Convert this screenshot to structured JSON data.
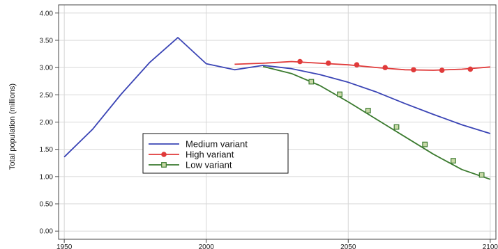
{
  "chart_data": {
    "type": "line",
    "ylabel": "Total population (millions)",
    "xlim": [
      1948,
      2102
    ],
    "ylim": [
      -0.15,
      4.15
    ],
    "x_ticks": [
      1950,
      2000,
      2050,
      2100
    ],
    "x_tick_labels": [
      "1950",
      "2000",
      "2050",
      "2100"
    ],
    "y_ticks": [
      0,
      0.5,
      1,
      1.5,
      2,
      2.5,
      3,
      3.5,
      4
    ],
    "y_tick_labels": [
      "0.00",
      "0.50",
      "1.00",
      "1.50",
      "2.00",
      "2.50",
      "3.00",
      "3.50",
      "4.00"
    ],
    "grid": true,
    "legend_position": "inside-left",
    "series": [
      {
        "name": "Medium variant",
        "color": "#3a44b5",
        "marker": "none",
        "x": [
          1950,
          1960,
          1970,
          1980,
          1990,
          2000,
          2010,
          2020,
          2030,
          2040,
          2050,
          2060,
          2070,
          2080,
          2090,
          2100
        ],
        "y": [
          1.36,
          1.87,
          2.51,
          3.09,
          3.55,
          3.07,
          2.96,
          3.04,
          2.98,
          2.87,
          2.73,
          2.55,
          2.34,
          2.14,
          1.95,
          1.79
        ]
      },
      {
        "name": "High variant",
        "color": "#e03a3a",
        "marker": "circle",
        "x": [
          2010,
          2020,
          2030,
          2040,
          2050,
          2060,
          2070,
          2080,
          2090,
          2100
        ],
        "y": [
          3.06,
          3.08,
          3.11,
          3.08,
          3.05,
          3.0,
          2.96,
          2.95,
          2.97,
          3.01
        ],
        "marker_x": [
          2033,
          2043,
          2053,
          2063,
          2073,
          2083,
          2093
        ],
        "marker_y": [
          3.11,
          3.08,
          3.05,
          3.0,
          2.96,
          2.95,
          2.97
        ]
      },
      {
        "name": "Low variant",
        "color": "#3a7a2e",
        "marker": "square",
        "x": [
          2020,
          2030,
          2040,
          2050,
          2060,
          2070,
          2080,
          2090,
          2100
        ],
        "y": [
          3.02,
          2.89,
          2.67,
          2.37,
          2.05,
          1.73,
          1.41,
          1.13,
          0.95
        ],
        "marker_x": [
          2037,
          2047,
          2057,
          2067,
          2077,
          2087,
          2097
        ],
        "marker_y": [
          2.74,
          2.51,
          2.21,
          1.91,
          1.59,
          1.29,
          1.03
        ]
      }
    ]
  }
}
